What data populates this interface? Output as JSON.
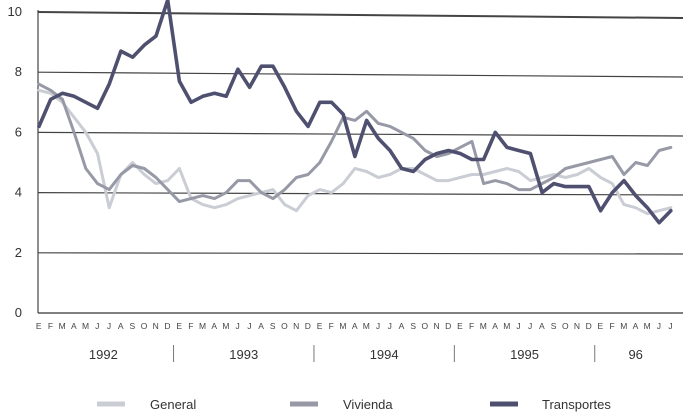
{
  "chart_data": {
    "type": "line",
    "title": "",
    "xlabel": "",
    "ylabel": "",
    "ylim": [
      0,
      10
    ],
    "yticks": [
      0,
      2,
      4,
      6,
      8,
      10
    ],
    "grid": "horizontal",
    "legend_position": "bottom",
    "month_letters": [
      "E",
      "F",
      "M",
      "A",
      "M",
      "J",
      "J",
      "A",
      "S",
      "O",
      "N",
      "D"
    ],
    "year_labels": [
      "1992",
      "1993",
      "1994",
      "1995",
      "96"
    ],
    "x_count": 55,
    "series": [
      {
        "name": "General",
        "color": "#cbcdd4",
        "values": [
          7.4,
          7.3,
          7.0,
          6.5,
          6.0,
          5.3,
          3.5,
          4.6,
          5.0,
          4.6,
          4.3,
          4.4,
          4.8,
          3.8,
          3.6,
          3.5,
          3.6,
          3.8,
          3.9,
          4.0,
          4.1,
          3.6,
          3.4,
          3.9,
          4.1,
          4.0,
          4.3,
          4.8,
          4.7,
          4.5,
          4.6,
          4.8,
          4.8,
          4.6,
          4.4,
          4.4,
          4.5,
          4.6,
          4.6,
          4.7,
          4.8,
          4.7,
          4.4,
          4.5,
          4.6,
          4.5,
          4.6,
          4.8,
          4.5,
          4.3,
          3.6,
          3.5,
          3.3,
          3.4,
          3.5
        ]
      },
      {
        "name": "Vivienda",
        "color": "#9799a6",
        "values": [
          7.6,
          7.4,
          7.1,
          6.0,
          4.8,
          4.3,
          4.1,
          4.6,
          4.9,
          4.8,
          4.5,
          4.1,
          3.7,
          3.8,
          3.9,
          3.8,
          4.0,
          4.4,
          4.4,
          4.0,
          3.8,
          4.1,
          4.5,
          4.6,
          5.0,
          5.7,
          6.5,
          6.4,
          6.7,
          6.3,
          6.2,
          6.0,
          5.8,
          5.4,
          5.2,
          5.3,
          5.5,
          5.7,
          4.3,
          4.4,
          4.3,
          4.1,
          4.1,
          4.3,
          4.5,
          4.8,
          4.9,
          5.0,
          5.1,
          5.2,
          4.6,
          5.0,
          4.9,
          5.4,
          5.5
        ]
      },
      {
        "name": "Transportes",
        "color": "#4f5070",
        "values": [
          6.2,
          7.1,
          7.3,
          7.2,
          7.0,
          6.8,
          7.6,
          8.7,
          8.5,
          8.9,
          9.2,
          10.4,
          7.7,
          7.0,
          7.2,
          7.3,
          7.2,
          8.1,
          7.5,
          8.2,
          8.2,
          7.5,
          6.7,
          6.2,
          7.0,
          7.0,
          6.6,
          5.2,
          6.4,
          5.8,
          5.4,
          4.8,
          4.7,
          5.1,
          5.3,
          5.4,
          5.3,
          5.1,
          5.1,
          6.0,
          5.5,
          5.4,
          5.3,
          4.0,
          4.3,
          4.2,
          4.2,
          4.2,
          3.4,
          4.0,
          4.4,
          3.9,
          3.5,
          3.0,
          3.4
        ]
      }
    ]
  }
}
